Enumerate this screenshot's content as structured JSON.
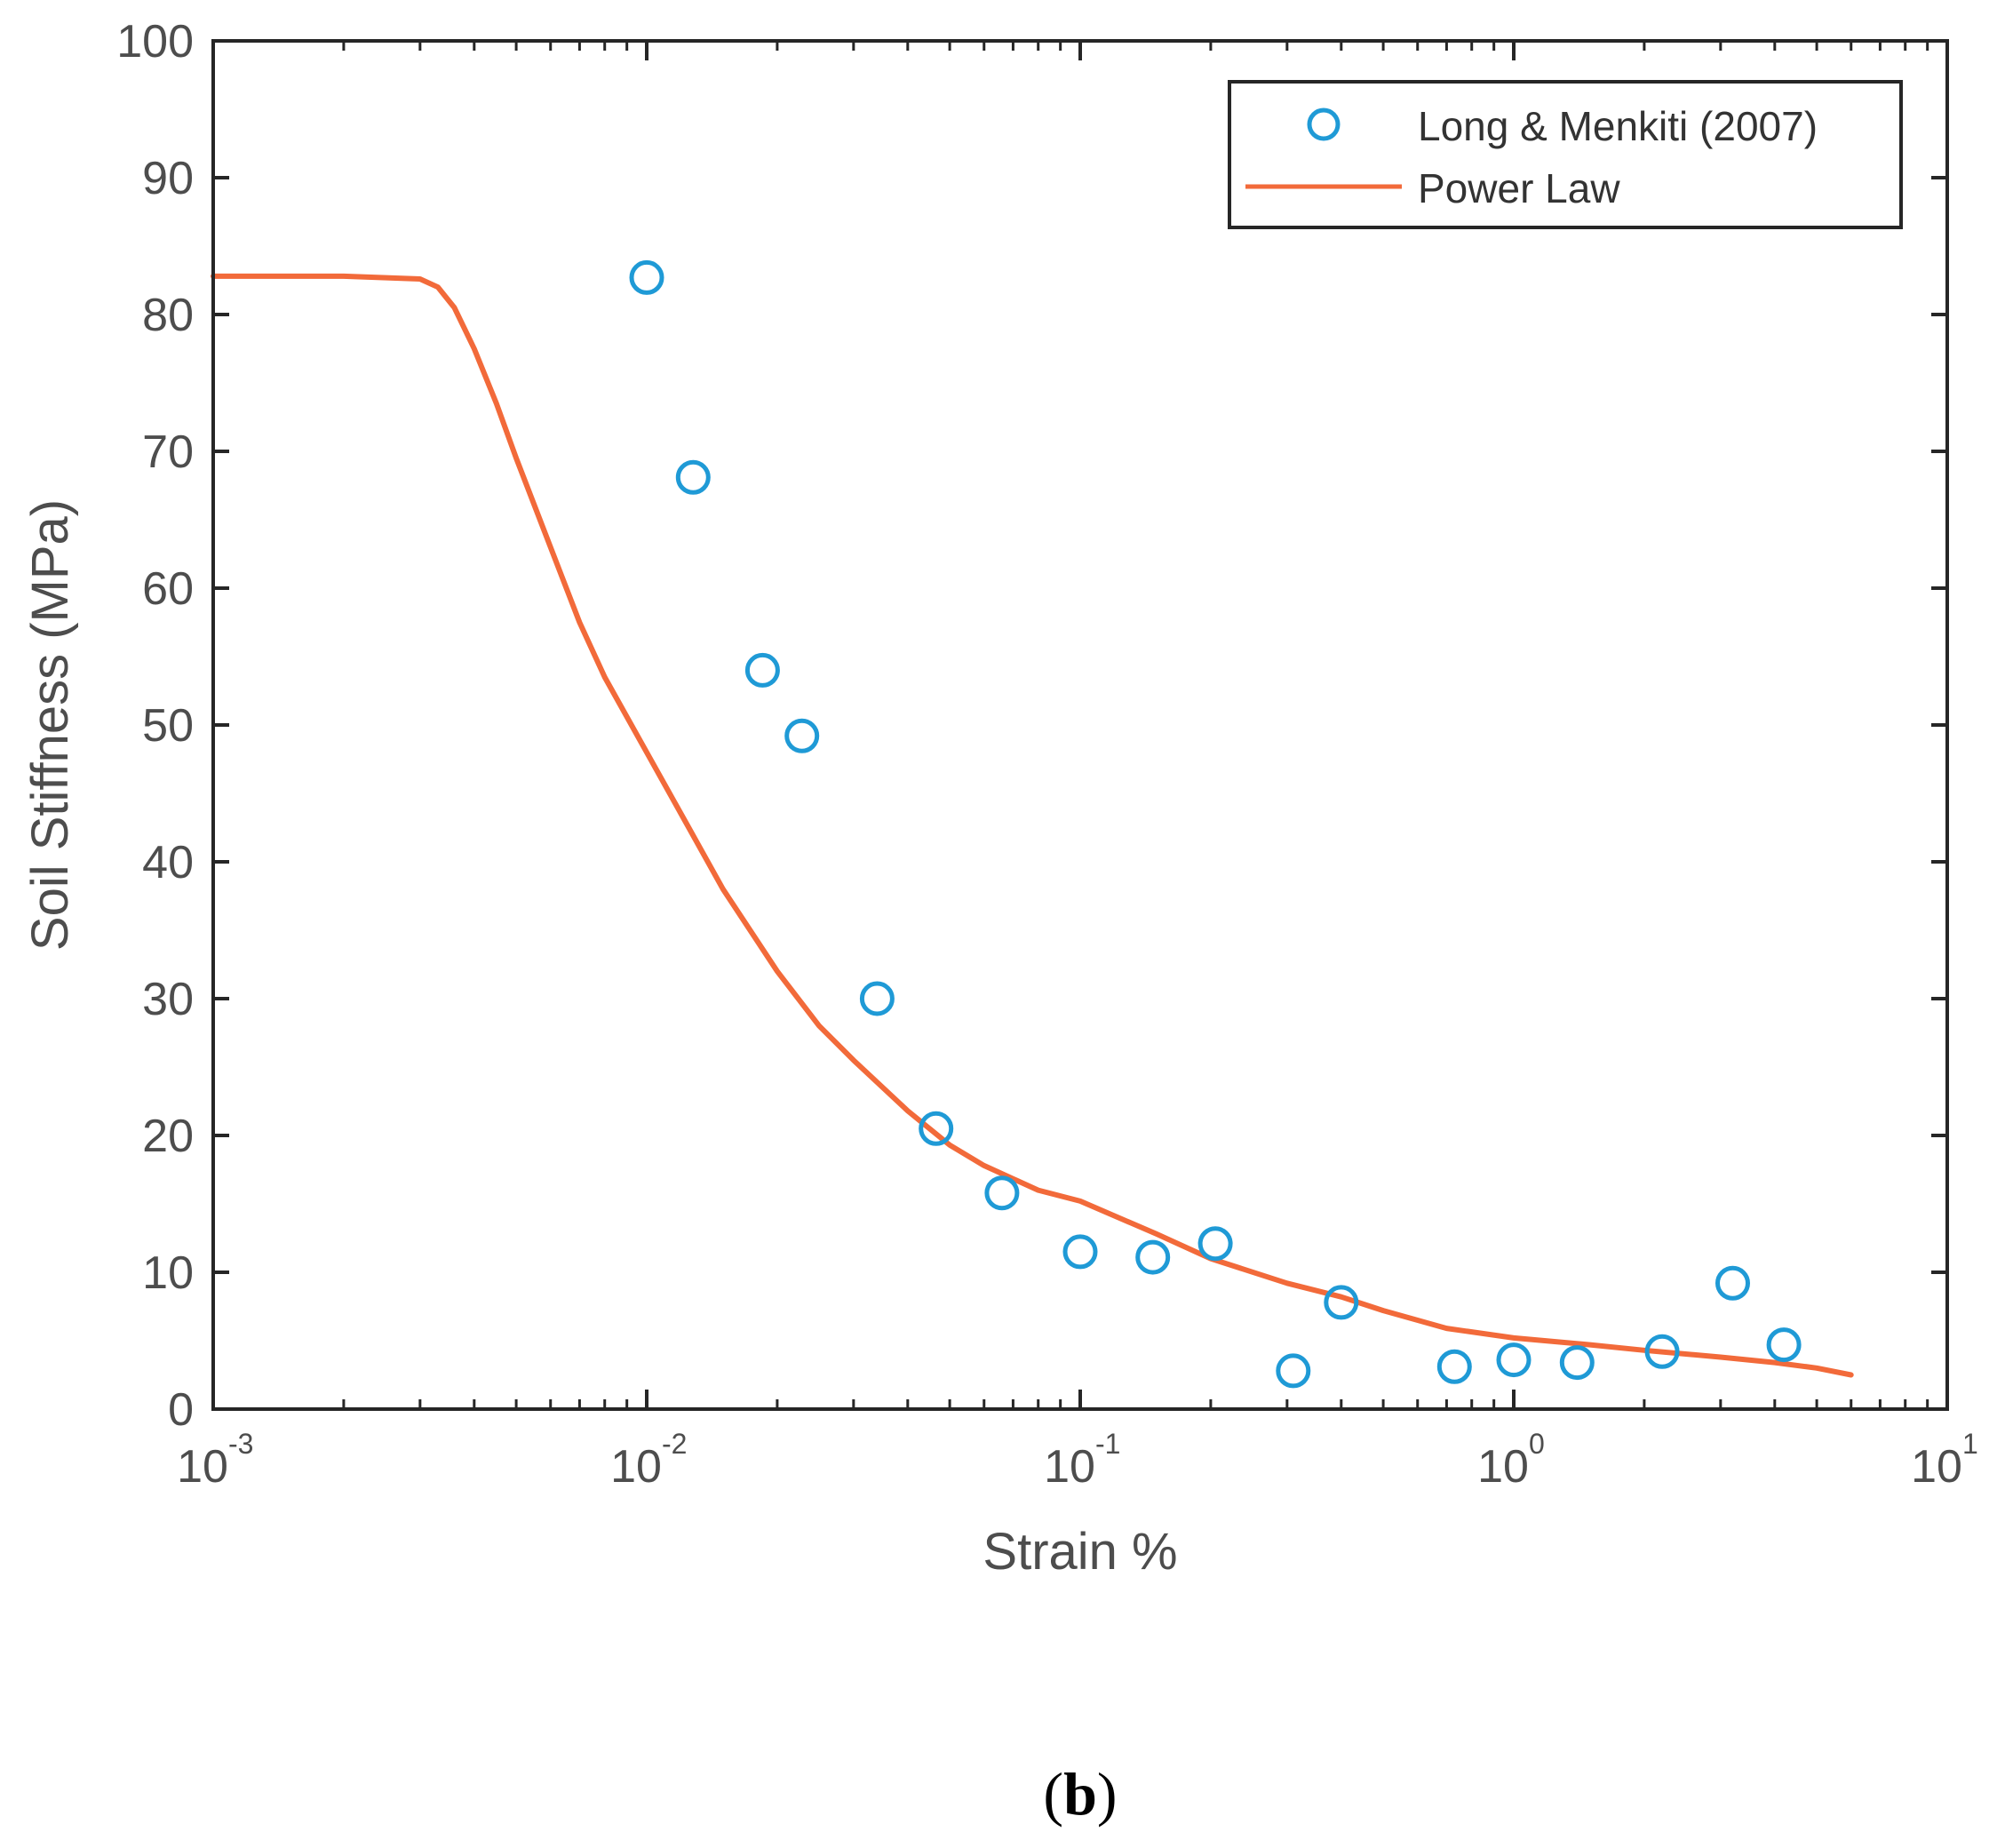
{
  "chart_data": {
    "type": "scatter",
    "title": "",
    "xlabel": "Strain %",
    "ylabel": "Soil Stiffness (MPa)",
    "xscale": "log",
    "xlim_exponents": [
      -3,
      1
    ],
    "ylim": [
      0,
      100
    ],
    "x_tick_base": "10",
    "x_ticks": [
      "-3",
      "-2",
      "-1",
      "0",
      "1"
    ],
    "y_ticks": [
      "0",
      "10",
      "20",
      "30",
      "40",
      "50",
      "60",
      "70",
      "80",
      "90",
      "100"
    ],
    "legend_position": "top-right",
    "series": [
      {
        "name": "Long & Menkiti (2007)",
        "kind": "marker",
        "marker": "open-circle",
        "color": "#1f9ad6",
        "x": [
          0.01,
          0.0128,
          0.0185,
          0.0228,
          0.034,
          0.0465,
          0.066,
          0.1,
          0.147,
          0.205,
          0.31,
          0.4,
          0.73,
          1.0,
          1.4,
          2.2,
          3.2,
          4.2
        ],
        "y": [
          82.7,
          68.1,
          54.0,
          49.2,
          30.0,
          20.5,
          15.8,
          11.5,
          11.1,
          12.1,
          2.8,
          7.8,
          3.1,
          3.6,
          3.4,
          4.2,
          9.2,
          4.7
        ]
      },
      {
        "name": "Power Law",
        "kind": "line",
        "color": "#f26a3a",
        "x": [
          0.001,
          0.002,
          0.003,
          0.0033,
          0.0036,
          0.004,
          0.0045,
          0.005,
          0.006,
          0.007,
          0.008,
          0.01,
          0.0125,
          0.015,
          0.02,
          0.025,
          0.03,
          0.04,
          0.05,
          0.06,
          0.08,
          0.1,
          0.15,
          0.2,
          0.3,
          0.4,
          0.5,
          0.7,
          1.0,
          1.5,
          2.0,
          3.0,
          4.0,
          5.0,
          6.0
        ],
        "y": [
          82.8,
          82.8,
          82.6,
          82.0,
          80.5,
          77.5,
          73.5,
          69.5,
          63.0,
          57.5,
          53.5,
          48.0,
          42.5,
          38.0,
          32.0,
          28.0,
          25.5,
          21.8,
          19.3,
          17.8,
          16.0,
          15.2,
          12.8,
          11.0,
          9.2,
          8.2,
          7.2,
          5.9,
          5.2,
          4.7,
          4.3,
          3.8,
          3.4,
          3.0,
          2.5
        ]
      }
    ]
  },
  "caption": {
    "open": "(",
    "letter": "b",
    "close": ")"
  }
}
